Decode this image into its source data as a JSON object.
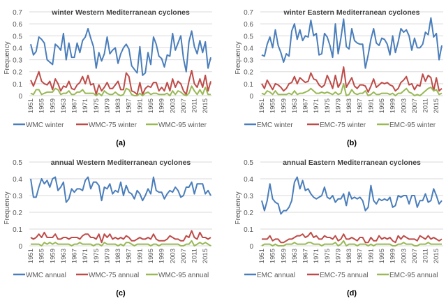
{
  "colors": {
    "main": "#4a7ebb",
    "p75": "#be4b48",
    "p95": "#98b954",
    "grid": "#d9d9d9",
    "text": "#595959"
  },
  "chart_data": [
    {
      "type": "line",
      "panel_label": "(a)",
      "title": "winter Western Mediterranean cyclones",
      "xlabel": "",
      "ylabel": "Frequency",
      "ylim": [
        0,
        0.7
      ],
      "yticks": [
        "0",
        "0.1",
        "0.2",
        "0.3",
        "0.4",
        "0.5",
        "0.6",
        "0.7"
      ],
      "x_start": 1951,
      "xticks": [
        "1951",
        "1955",
        "1959",
        "1963",
        "1967",
        "1971",
        "1975",
        "1979",
        "1983",
        "1987",
        "1991",
        "1995",
        "1999",
        "2003",
        "2007",
        "2011",
        "2015"
      ],
      "legend_position": "bottom",
      "series": [
        {
          "name": "WMC winter",
          "color_key": "main",
          "values": [
            0.43,
            0.34,
            0.37,
            0.49,
            0.47,
            0.44,
            0.3,
            0.28,
            0.26,
            0.43,
            0.41,
            0.38,
            0.52,
            0.3,
            0.44,
            0.32,
            0.32,
            0.44,
            0.36,
            0.46,
            0.49,
            0.56,
            0.48,
            0.41,
            0.23,
            0.36,
            0.29,
            0.35,
            0.49,
            0.35,
            0.38,
            0.4,
            0.27,
            0.35,
            0.4,
            0.43,
            0.39,
            0.25,
            0.22,
            0.19,
            0.41,
            0.17,
            0.19,
            0.36,
            0.26,
            0.49,
            0.43,
            0.33,
            0.31,
            0.24,
            0.34,
            0.33,
            0.52,
            0.38,
            0.44,
            0.5,
            0.31,
            0.2,
            0.45,
            0.54,
            0.41,
            0.35,
            0.46,
            0.36,
            0.45,
            0.23,
            0.32
          ]
        },
        {
          "name": "WMC-75 winter",
          "color_key": "p75",
          "values": [
            0.13,
            0.08,
            0.14,
            0.2,
            0.12,
            0.1,
            0.09,
            0.12,
            0.05,
            0.14,
            0.1,
            0.04,
            0.08,
            0.07,
            0.12,
            0.06,
            0.05,
            0.09,
            0.11,
            0.16,
            0.1,
            0.17,
            0.09,
            0.1,
            0.01,
            0.09,
            0.04,
            0.07,
            0.11,
            0.06,
            0.06,
            0.09,
            0.12,
            0.05,
            0.05,
            0.19,
            0.16,
            0.04,
            0.03,
            0.01,
            0.11,
            0.01,
            0.06,
            0.08,
            0.07,
            0.11,
            0.11,
            0.04,
            0.07,
            0.04,
            0.11,
            0.04,
            0.14,
            0.07,
            0.12,
            0.1,
            0.04,
            0.01,
            0.12,
            0.21,
            0.1,
            0.07,
            0.14,
            0.07,
            0.17,
            0.04,
            0.12
          ]
        },
        {
          "name": "WMC-95 winter",
          "color_key": "p95",
          "values": [
            0.02,
            0.01,
            0.05,
            0.05,
            0.01,
            0.02,
            0.03,
            0.03,
            0.03,
            0.06,
            0.05,
            0.01,
            0.02,
            0.02,
            0.04,
            0.01,
            0.01,
            0.03,
            0.03,
            0.05,
            0.02,
            0.02,
            0.02,
            0.02,
            0.0,
            0.02,
            0.0,
            0.04,
            0.02,
            0.01,
            0.01,
            0.03,
            0.01,
            0.0,
            0.01,
            0.06,
            0.05,
            0.01,
            0.0,
            0.0,
            0.02,
            0.0,
            0.02,
            0.03,
            0.01,
            0.02,
            0.02,
            0.01,
            0.01,
            0.01,
            0.02,
            0.0,
            0.04,
            0.01,
            0.04,
            0.03,
            0.01,
            0.0,
            0.02,
            0.08,
            0.04,
            0.01,
            0.05,
            0.01,
            0.07,
            0.01,
            0.01
          ]
        }
      ]
    },
    {
      "type": "line",
      "panel_label": "(b)",
      "title": "winter Eastern Mediterranean cyclones",
      "xlabel": "",
      "ylabel": "Frequency",
      "ylim": [
        0,
        0.7
      ],
      "yticks": [
        "0",
        "0.1",
        "0.2",
        "0.3",
        "0.4",
        "0.5",
        "0.6",
        "0.7"
      ],
      "x_start": 1951,
      "xticks": [
        "1951",
        "1955",
        "1959",
        "1963",
        "1967",
        "1971",
        "1975",
        "1979",
        "1983",
        "1987",
        "1991",
        "1995",
        "1999",
        "2003",
        "2007",
        "2011",
        "2015"
      ],
      "legend_position": "bottom",
      "series": [
        {
          "name": "EMC winter",
          "color_key": "main",
          "values": [
            0.34,
            0.33,
            0.43,
            0.49,
            0.4,
            0.55,
            0.42,
            0.36,
            0.28,
            0.35,
            0.33,
            0.54,
            0.6,
            0.47,
            0.55,
            0.46,
            0.5,
            0.49,
            0.63,
            0.5,
            0.52,
            0.34,
            0.35,
            0.52,
            0.49,
            0.42,
            0.32,
            0.6,
            0.35,
            0.48,
            0.64,
            0.41,
            0.39,
            0.56,
            0.46,
            0.44,
            0.43,
            0.43,
            0.23,
            0.34,
            0.47,
            0.56,
            0.44,
            0.42,
            0.48,
            0.47,
            0.43,
            0.34,
            0.5,
            0.36,
            0.45,
            0.56,
            0.53,
            0.55,
            0.5,
            0.38,
            0.48,
            0.4,
            0.4,
            0.43,
            0.53,
            0.51,
            0.65,
            0.49,
            0.52,
            0.3,
            0.42
          ]
        },
        {
          "name": "EMC-75 winter",
          "color_key": "p75",
          "values": [
            0.1,
            0.06,
            0.13,
            0.09,
            0.05,
            0.1,
            0.09,
            0.07,
            0.04,
            0.06,
            0.1,
            0.11,
            0.16,
            0.1,
            0.15,
            0.13,
            0.11,
            0.12,
            0.19,
            0.14,
            0.13,
            0.09,
            0.07,
            0.09,
            0.17,
            0.12,
            0.06,
            0.17,
            0.07,
            0.11,
            0.24,
            0.07,
            0.11,
            0.15,
            0.08,
            0.06,
            0.09,
            0.09,
            0.08,
            0.03,
            0.08,
            0.14,
            0.07,
            0.09,
            0.11,
            0.1,
            0.11,
            0.09,
            0.08,
            0.04,
            0.06,
            0.11,
            0.13,
            0.16,
            0.09,
            0.1,
            0.05,
            0.09,
            0.08,
            0.18,
            0.12,
            0.17,
            0.15,
            0.04,
            0.15,
            0.04,
            0.06
          ]
        },
        {
          "name": "EMC-95 winter",
          "color_key": "p95",
          "values": [
            0.02,
            0.01,
            0.04,
            0.03,
            0.01,
            0.04,
            0.01,
            0.01,
            0.01,
            0.01,
            0.02,
            0.01,
            0.04,
            0.01,
            0.02,
            0.02,
            0.03,
            0.04,
            0.06,
            0.04,
            0.02,
            0.02,
            0.03,
            0.02,
            0.03,
            0.02,
            0.01,
            0.03,
            0.01,
            0.02,
            0.1,
            0.0,
            0.01,
            0.05,
            0.02,
            0.01,
            0.02,
            0.02,
            0.04,
            0.0,
            0.01,
            0.03,
            0.01,
            0.01,
            0.02,
            0.02,
            0.02,
            0.01,
            0.02,
            0.0,
            0.02,
            0.02,
            0.04,
            0.06,
            0.03,
            0.02,
            0.0,
            0.01,
            0.0,
            0.02,
            0.04,
            0.06,
            0.07,
            0.04,
            0.05,
            0.01,
            0.02
          ]
        }
      ]
    },
    {
      "type": "line",
      "panel_label": "(c)",
      "title": "annual Western Mediterranean cyclones",
      "xlabel": "",
      "ylabel": "Frequency",
      "ylim": [
        0,
        0.5
      ],
      "yticks": [
        "0",
        "0.1",
        "0.2",
        "0.3",
        "0.4",
        "0.5"
      ],
      "x_start": 1951,
      "xticks": [
        "1951",
        "1955",
        "1959",
        "1963",
        "1967",
        "1971",
        "1975",
        "1979",
        "1983",
        "1987",
        "1991",
        "1995",
        "1999",
        "2003",
        "2007",
        "2011",
        "2015"
      ],
      "legend_position": "bottom",
      "series": [
        {
          "name": "WMC annual",
          "color_key": "main",
          "values": [
            0.4,
            0.29,
            0.29,
            0.35,
            0.4,
            0.37,
            0.39,
            0.35,
            0.4,
            0.41,
            0.33,
            0.35,
            0.38,
            0.26,
            0.28,
            0.34,
            0.32,
            0.34,
            0.34,
            0.33,
            0.39,
            0.41,
            0.34,
            0.38,
            0.38,
            0.36,
            0.27,
            0.35,
            0.34,
            0.37,
            0.31,
            0.33,
            0.32,
            0.38,
            0.3,
            0.36,
            0.32,
            0.31,
            0.28,
            0.33,
            0.31,
            0.27,
            0.3,
            0.34,
            0.31,
            0.41,
            0.33,
            0.32,
            0.32,
            0.28,
            0.31,
            0.33,
            0.32,
            0.35,
            0.33,
            0.29,
            0.3,
            0.35,
            0.35,
            0.38,
            0.31,
            0.37,
            0.37,
            0.37,
            0.31,
            0.33,
            0.3
          ]
        },
        {
          "name": "WMC-75 annual",
          "color_key": "p75",
          "values": [
            0.05,
            0.04,
            0.05,
            0.07,
            0.05,
            0.08,
            0.05,
            0.05,
            0.05,
            0.07,
            0.04,
            0.04,
            0.05,
            0.05,
            0.04,
            0.05,
            0.05,
            0.05,
            0.04,
            0.06,
            0.07,
            0.07,
            0.05,
            0.05,
            0.04,
            0.07,
            0.02,
            0.07,
            0.05,
            0.07,
            0.04,
            0.05,
            0.04,
            0.05,
            0.04,
            0.06,
            0.05,
            0.03,
            0.03,
            0.04,
            0.05,
            0.04,
            0.04,
            0.05,
            0.04,
            0.07,
            0.04,
            0.03,
            0.03,
            0.03,
            0.04,
            0.06,
            0.05,
            0.04,
            0.04,
            0.03,
            0.03,
            0.06,
            0.05,
            0.09,
            0.05,
            0.04,
            0.08,
            0.05,
            0.05,
            0.04,
            0.05
          ]
        },
        {
          "name": "WMC-95 annual",
          "color_key": "p95",
          "values": [
            0.01,
            0.01,
            0.01,
            0.01,
            0.0,
            0.02,
            0.01,
            0.02,
            0.01,
            0.02,
            0.01,
            0.01,
            0.01,
            0.01,
            0.01,
            0.0,
            0.01,
            0.01,
            0.02,
            0.01,
            0.01,
            0.01,
            0.01,
            0.0,
            0.01,
            0.01,
            0.0,
            0.02,
            0.01,
            0.01,
            0.01,
            0.01,
            0.0,
            0.01,
            0.0,
            0.02,
            0.02,
            0.01,
            0.0,
            0.01,
            0.01,
            0.01,
            0.01,
            0.01,
            0.0,
            0.01,
            0.01,
            0.0,
            0.01,
            0.01,
            0.01,
            0.01,
            0.01,
            0.01,
            0.01,
            0.0,
            0.0,
            0.01,
            0.01,
            0.03,
            0.0,
            0.01,
            0.02,
            0.01,
            0.02,
            0.01,
            0.0
          ]
        }
      ]
    },
    {
      "type": "line",
      "panel_label": "(d)",
      "title": "annual Eastern Mediterranean cyclones",
      "xlabel": "",
      "ylabel": "Frequency",
      "ylim": [
        0,
        0.5
      ],
      "yticks": [
        "0",
        "0.1",
        "0.2",
        "0.3",
        "0.4",
        "0.5"
      ],
      "x_start": 1951,
      "xticks": [
        "1951",
        "1955",
        "1959",
        "1963",
        "1967",
        "1971",
        "1975",
        "1979",
        "1983",
        "1987",
        "1991",
        "1995",
        "1999",
        "2003",
        "2007",
        "2011",
        "2015"
      ],
      "legend_position": "bottom",
      "series": [
        {
          "name": "EMC annual",
          "color_key": "main",
          "values": [
            0.27,
            0.21,
            0.27,
            0.37,
            0.28,
            0.26,
            0.25,
            0.19,
            0.21,
            0.21,
            0.23,
            0.27,
            0.38,
            0.41,
            0.34,
            0.39,
            0.33,
            0.34,
            0.31,
            0.29,
            0.28,
            0.29,
            0.3,
            0.35,
            0.29,
            0.28,
            0.3,
            0.26,
            0.28,
            0.28,
            0.31,
            0.24,
            0.32,
            0.28,
            0.29,
            0.28,
            0.29,
            0.27,
            0.21,
            0.23,
            0.36,
            0.27,
            0.25,
            0.28,
            0.27,
            0.28,
            0.27,
            0.29,
            0.23,
            0.24,
            0.3,
            0.29,
            0.3,
            0.3,
            0.25,
            0.3,
            0.3,
            0.23,
            0.27,
            0.27,
            0.31,
            0.26,
            0.27,
            0.34,
            0.3,
            0.25,
            0.27
          ]
        },
        {
          "name": "EMC-75 annual",
          "color_key": "p75",
          "values": [
            0.04,
            0.04,
            0.04,
            0.06,
            0.03,
            0.04,
            0.04,
            0.02,
            0.02,
            0.03,
            0.04,
            0.04,
            0.05,
            0.06,
            0.06,
            0.07,
            0.05,
            0.06,
            0.08,
            0.05,
            0.06,
            0.04,
            0.04,
            0.06,
            0.05,
            0.05,
            0.04,
            0.06,
            0.03,
            0.04,
            0.07,
            0.04,
            0.04,
            0.05,
            0.04,
            0.03,
            0.05,
            0.05,
            0.02,
            0.02,
            0.05,
            0.03,
            0.03,
            0.06,
            0.04,
            0.05,
            0.04,
            0.05,
            0.03,
            0.02,
            0.06,
            0.04,
            0.06,
            0.05,
            0.04,
            0.04,
            0.04,
            0.03,
            0.06,
            0.05,
            0.04,
            0.06,
            0.04,
            0.05,
            0.04,
            0.03,
            0.04
          ]
        },
        {
          "name": "EMC-95 annual",
          "color_key": "p95",
          "values": [
            0.0,
            0.01,
            0.01,
            0.01,
            0.0,
            0.01,
            0.0,
            0.0,
            0.0,
            0.01,
            0.01,
            0.01,
            0.02,
            0.01,
            0.01,
            0.01,
            0.01,
            0.02,
            0.02,
            0.01,
            0.01,
            0.01,
            0.0,
            0.01,
            0.01,
            0.01,
            0.01,
            0.02,
            0.0,
            0.01,
            0.03,
            0.0,
            0.01,
            0.01,
            0.01,
            0.0,
            0.01,
            0.01,
            0.01,
            0.0,
            0.01,
            0.0,
            0.01,
            0.01,
            0.01,
            0.01,
            0.01,
            0.01,
            0.0,
            0.0,
            0.01,
            0.01,
            0.02,
            0.01,
            0.01,
            0.01,
            0.0,
            0.0,
            0.01,
            0.01,
            0.01,
            0.02,
            0.01,
            0.01,
            0.01,
            0.01,
            0.01
          ]
        }
      ]
    }
  ]
}
